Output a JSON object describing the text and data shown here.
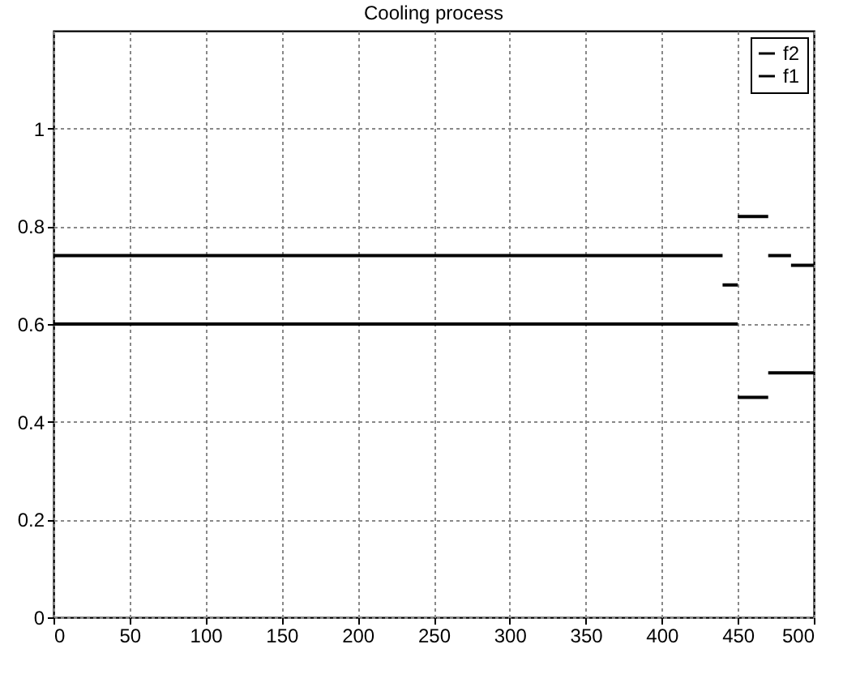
{
  "chart_data": {
    "type": "line",
    "title": "Cooling process",
    "series": [
      {
        "name": "f2",
        "color": "#000000",
        "x": [
          0,
          440,
          null,
          440,
          450,
          null,
          450,
          470,
          null,
          470,
          485,
          null,
          485,
          500
        ],
        "values": [
          0.74,
          0.74,
          null,
          0.68,
          0.68,
          null,
          0.82,
          0.82,
          null,
          0.74,
          0.74,
          null,
          0.72,
          0.72
        ]
      },
      {
        "name": "f1",
        "color": "#000000",
        "x": [
          0,
          450,
          null,
          450,
          470,
          null,
          470,
          500
        ],
        "values": [
          0.6,
          0.6,
          null,
          0.45,
          0.45,
          null,
          0.5,
          0.5
        ]
      }
    ],
    "xlim": [
      0,
      500
    ],
    "xticks": [
      0,
      50,
      100,
      150,
      200,
      250,
      300,
      350,
      400,
      450,
      500
    ],
    "ylim": [
      0,
      1.2
    ],
    "yticks": [
      0,
      0.2,
      0.4,
      0.6,
      0.8,
      1
    ],
    "grid": true,
    "legend": "top right",
    "line_style": "solid"
  }
}
